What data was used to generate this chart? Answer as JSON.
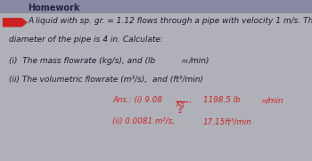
{
  "outer_bg": "#b0b0b8",
  "header_bg": "#8888a0",
  "content_bg": "#9a9aaa",
  "lower_bg": "#c8c8d0",
  "red_color": "#cc2222",
  "text_color": "#1a1a2e",
  "ans_color": "#cc2222",
  "line1": "A liquid with sp. gr. = 1.12 flows through a pipe with velocity 1 m/s. The",
  "line2": "diameter of the pipe is 4 in. Calculate:",
  "line3a": "(i)  The mass flowrate (kg/s), and (lb",
  "line3sub": "m",
  "line3b": "/min)",
  "line4": "(ii) The volumetric flowrate (m³/s),  and (ft³/min)",
  "ans1a": "Ans.: (i) 9.08 ",
  "ans1_num": "Kg",
  "ans1_den": "s",
  "ans1b": ",",
  "ans1c": "1198.5 lb",
  "ans1csub": "m",
  "ans1d": "/min",
  "ans2a": "(ii) 0.0081 m³/s,",
  "ans2b": "17.15ft³/min",
  "fs_main": 6.5,
  "fs_ans": 6.3
}
